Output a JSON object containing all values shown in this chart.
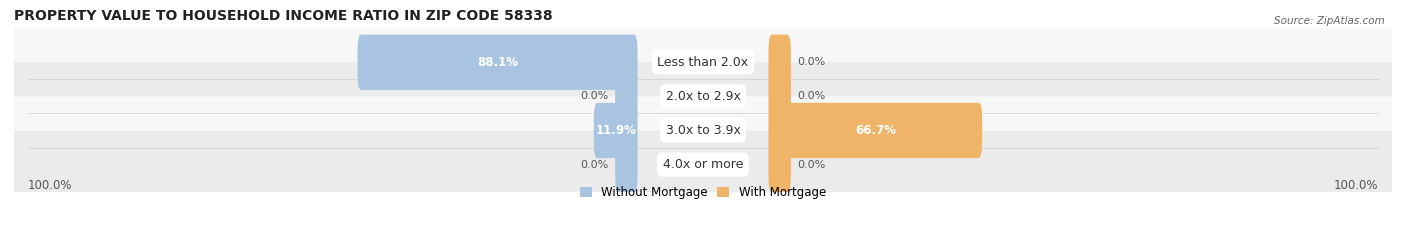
{
  "title": "PROPERTY VALUE TO HOUSEHOLD INCOME RATIO IN ZIP CODE 58338",
  "source": "Source: ZipAtlas.com",
  "categories": [
    "Less than 2.0x",
    "2.0x to 2.9x",
    "3.0x to 3.9x",
    "4.0x or more"
  ],
  "without_mortgage": [
    88.1,
    0.0,
    11.9,
    0.0
  ],
  "with_mortgage": [
    0.0,
    0.0,
    66.7,
    0.0
  ],
  "left_label": "100.0%",
  "right_label": "100.0%",
  "color_without": "#a8c4e0",
  "color_with": "#f0b469",
  "row_bg_even": "#f7f7f7",
  "row_bg_odd": "#ebebeb",
  "label_fontsize": 8.5,
  "cat_fontsize": 9.0,
  "title_fontsize": 10,
  "max_val": 100,
  "stub_val": 5.0
}
